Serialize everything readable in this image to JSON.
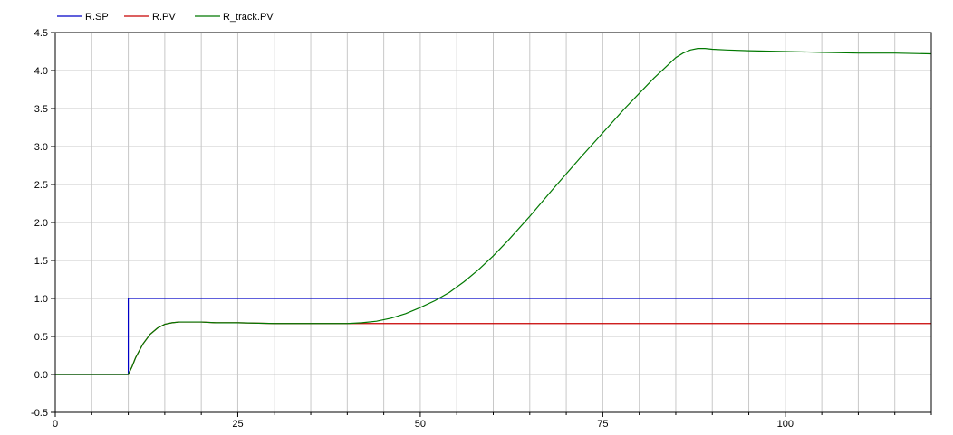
{
  "chart_data": {
    "type": "line",
    "title": "",
    "xlabel": "",
    "ylabel": "",
    "xlim": [
      0,
      120
    ],
    "ylim": [
      -0.5,
      4.5
    ],
    "x_ticks": [
      0,
      25,
      50,
      75,
      100
    ],
    "x_tick_labels": [
      "0",
      "25",
      "50",
      "75",
      "100"
    ],
    "y_ticks": [
      -0.5,
      0.0,
      0.5,
      1.0,
      1.5,
      2.0,
      2.5,
      3.0,
      3.5,
      4.0,
      4.5
    ],
    "y_tick_labels": [
      "-0.5",
      "0.0",
      "0.5",
      "1.0",
      "1.5",
      "2.0",
      "2.5",
      "3.0",
      "3.5",
      "4.0",
      "4.5"
    ],
    "grid": true,
    "legend_position": "top-left",
    "series": [
      {
        "name": "R.SP",
        "color": "#0000c8",
        "x": [
          0,
          10,
          10,
          120
        ],
        "y": [
          0,
          0,
          1.0,
          1.0
        ]
      },
      {
        "name": "R.PV",
        "color": "#c80000",
        "x": [
          0,
          10,
          10.5,
          11,
          12,
          13,
          14,
          15,
          16,
          17,
          18,
          20,
          22,
          25,
          30,
          35,
          40,
          45,
          50,
          60,
          80,
          100,
          120
        ],
        "y": [
          0,
          0,
          0.1,
          0.22,
          0.4,
          0.53,
          0.61,
          0.66,
          0.68,
          0.69,
          0.69,
          0.69,
          0.68,
          0.68,
          0.67,
          0.67,
          0.67,
          0.67,
          0.67,
          0.67,
          0.67,
          0.67,
          0.67
        ]
      },
      {
        "name": "R_track.PV",
        "color": "#007800",
        "x": [
          0,
          10,
          10.5,
          11,
          12,
          13,
          14,
          15,
          16,
          17,
          18,
          20,
          22,
          25,
          30,
          35,
          40,
          42,
          44,
          46,
          48,
          50,
          52,
          54,
          56,
          58,
          60,
          62,
          65,
          68,
          70,
          72,
          75,
          78,
          80,
          82,
          84,
          85,
          86,
          87,
          88,
          89,
          90,
          92,
          95,
          100,
          105,
          110,
          115,
          120
        ],
        "y": [
          0,
          0,
          0.1,
          0.22,
          0.4,
          0.53,
          0.61,
          0.66,
          0.68,
          0.69,
          0.69,
          0.69,
          0.68,
          0.68,
          0.67,
          0.67,
          0.67,
          0.68,
          0.7,
          0.74,
          0.8,
          0.88,
          0.97,
          1.08,
          1.22,
          1.38,
          1.56,
          1.76,
          2.08,
          2.42,
          2.64,
          2.86,
          3.18,
          3.5,
          3.7,
          3.9,
          4.08,
          4.17,
          4.23,
          4.27,
          4.29,
          4.29,
          4.28,
          4.27,
          4.26,
          4.25,
          4.24,
          4.23,
          4.23,
          4.22
        ]
      }
    ]
  }
}
